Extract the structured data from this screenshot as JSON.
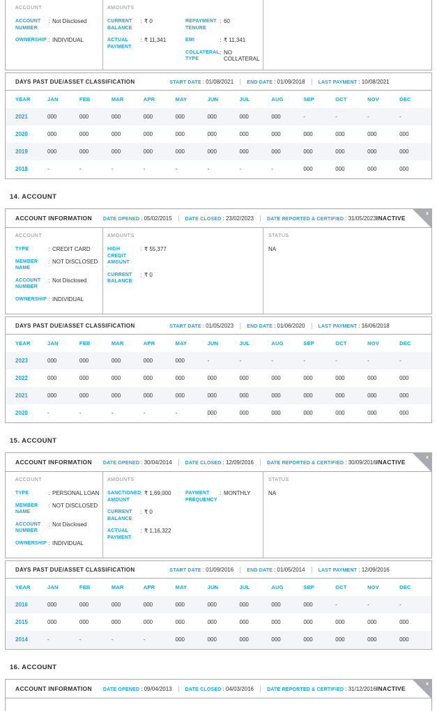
{
  "colors": {
    "accent_cyan": "#13a8d8",
    "text_dark": "#2e2e30",
    "muted_gray": "#8a8c8f",
    "border_gray": "#a9abae",
    "row_alt_bg": "#f3f5f9",
    "ribbon_gray": "#a9abae"
  },
  "labels": {
    "account_information": "ACCOUNT INFORMATION",
    "date_opened": "DATE OPENED",
    "date_closed": "DATE CLOSED",
    "date_reported_certified": "DATE REPORTED & CERTIFIED",
    "inactive": "INACTIVE",
    "close": "x",
    "colon": ":",
    "dpd_title": "DAYS PAST DUE/ASSET CLASSIFICATION",
    "start_date": "START DATE",
    "end_date": "END DATE",
    "last_payment": "LAST PAYMENT",
    "year": "YEAR",
    "account_group": "ACCOUNT",
    "amounts_group": "AMOUNTS",
    "status_group": "STATUS"
  },
  "months": [
    "JAN",
    "FEB",
    "MAR",
    "APR",
    "MAY",
    "JUN",
    "JUL",
    "AUG",
    "SEP",
    "OCT",
    "NOV",
    "DEC"
  ],
  "top_card": {
    "account_fields": [
      {
        "label": "ACCOUNT NUMBER",
        "value": "Not Disclosed"
      },
      {
        "label": "OWNERSHIP",
        "value": "INDIVIDUAL"
      }
    ],
    "amounts_col1": [
      {
        "label": "CURRENT BALANCE",
        "value": "₹ 0"
      },
      {
        "label": "ACTUAL PAYMENT",
        "value": "₹ 11,341"
      }
    ],
    "amounts_col2": [
      {
        "label": "REPAYMENT TENURE",
        "value": "60"
      },
      {
        "label": "EMI",
        "value": "₹ 11,341"
      },
      {
        "label": "COLLATERAL TYPE",
        "value": "NO COLLATERAL"
      }
    ],
    "dpd": {
      "start_date": "01/08/2021",
      "end_date": "01/09/2018",
      "last_payment": "10/08/2021",
      "rows": [
        {
          "year": "2021",
          "values": [
            "000",
            "000",
            "000",
            "000",
            "000",
            "000",
            "000",
            "000",
            "-",
            "-",
            "-",
            "-"
          ]
        },
        {
          "year": "2020",
          "values": [
            "000",
            "000",
            "000",
            "000",
            "000",
            "000",
            "000",
            "000",
            "000",
            "000",
            "000",
            "000"
          ]
        },
        {
          "year": "2019",
          "values": [
            "000",
            "000",
            "000",
            "000",
            "000",
            "000",
            "000",
            "000",
            "000",
            "000",
            "000",
            "000"
          ]
        },
        {
          "year": "2018",
          "values": [
            "-",
            "-",
            "-",
            "-",
            "-",
            "-",
            "-",
            "-",
            "000",
            "000",
            "000",
            "000"
          ]
        }
      ]
    }
  },
  "sections": [
    {
      "heading": "14. ACCOUNT",
      "info": {
        "date_opened": "05/02/2015",
        "date_closed": "23/02/2023",
        "date_reported_certified": "31/05/2023",
        "status_flag": "INACTIVE"
      },
      "account_fields": [
        {
          "label": "TYPE",
          "value": "CREDIT CARD"
        },
        {
          "label": "MEMBER NAME",
          "value": "NOT DISCLOSED"
        },
        {
          "label": "ACCOUNT NUMBER",
          "value": "Not Disclosed"
        },
        {
          "label": "OWNERSHIP",
          "value": "INDIVIDUAL"
        }
      ],
      "amounts_col1": [
        {
          "label": "HIGH CREDIT AMOUNT",
          "value": "₹ 55,377"
        },
        {
          "label": "CURRENT BALANCE",
          "value": "₹ 0"
        }
      ],
      "amounts_col2": [],
      "status": "NA",
      "dpd": {
        "start_date": "01/05/2023",
        "end_date": "01/06/2020",
        "last_payment": "16/06/2018",
        "rows": [
          {
            "year": "2023",
            "values": [
              "000",
              "000",
              "000",
              "000",
              "000",
              "-",
              "-",
              "-",
              "-",
              "-",
              "-",
              "-"
            ]
          },
          {
            "year": "2022",
            "values": [
              "000",
              "000",
              "000",
              "000",
              "000",
              "000",
              "000",
              "000",
              "000",
              "000",
              "000",
              "000"
            ]
          },
          {
            "year": "2021",
            "values": [
              "000",
              "000",
              "000",
              "000",
              "000",
              "000",
              "000",
              "000",
              "000",
              "000",
              "000",
              "000"
            ]
          },
          {
            "year": "2020",
            "values": [
              "-",
              "-",
              "-",
              "-",
              "-",
              "000",
              "000",
              "000",
              "000",
              "000",
              "000",
              "000"
            ]
          }
        ]
      }
    },
    {
      "heading": "15. ACCOUNT",
      "info": {
        "date_opened": "30/04/2014",
        "date_closed": "12/09/2016",
        "date_reported_certified": "30/09/2016",
        "status_flag": "INACTIVE"
      },
      "account_fields": [
        {
          "label": "TYPE",
          "value": "PERSONAL LOAN"
        },
        {
          "label": "MEMBER NAME",
          "value": "NOT DISCLOSED"
        },
        {
          "label": "ACCOUNT NUMBER",
          "value": "Not Disclosed"
        },
        {
          "label": "OWNERSHIP",
          "value": "INDIVIDUAL"
        }
      ],
      "amounts_col1": [
        {
          "label": "SANCTIONED AMOUNT",
          "value": "₹ 1,69,000"
        },
        {
          "label": "CURRENT BALANCE",
          "value": "₹ 0"
        },
        {
          "label": "ACTUAL PAYMENT",
          "value": "₹ 1,16,322"
        }
      ],
      "amounts_col2": [
        {
          "label": "PAYMENT FREQUENCY",
          "value": "MONTHLY"
        }
      ],
      "status": "NA",
      "dpd": {
        "start_date": "01/09/2016",
        "end_date": "01/05/2014",
        "last_payment": "12/09/2016",
        "rows": [
          {
            "year": "2016",
            "values": [
              "000",
              "000",
              "000",
              "000",
              "000",
              "000",
              "000",
              "000",
              "000",
              "-",
              "-",
              "-"
            ]
          },
          {
            "year": "2015",
            "values": [
              "000",
              "000",
              "000",
              "000",
              "000",
              "000",
              "000",
              "000",
              "000",
              "000",
              "000",
              "000"
            ]
          },
          {
            "year": "2014",
            "values": [
              "-",
              "-",
              "-",
              "-",
              "000",
              "000",
              "000",
              "000",
              "000",
              "000",
              "000",
              "000"
            ]
          }
        ]
      }
    },
    {
      "heading": "16. ACCOUNT",
      "info": {
        "date_opened": "09/04/2013",
        "date_closed": "04/03/2016",
        "date_reported_certified": "31/12/2016",
        "status_flag": "INACTIVE"
      }
    }
  ]
}
